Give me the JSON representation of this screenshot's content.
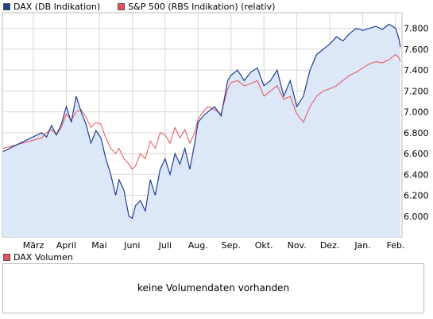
{
  "legend": {
    "series1_label": "DAX (DB Indikation)",
    "series2_label": "S&P 500 (RBS Indikation) (relativ)"
  },
  "volume": {
    "label": "DAX Volumen",
    "message": "keine Volumendaten vorhanden"
  },
  "colors": {
    "dax_line": "#1f3f8f",
    "dax_fill": "#dce8f8",
    "sp500_line": "#e8505a",
    "grid": "#d8d8d8"
  },
  "chart_data": {
    "type": "line",
    "x_tick_labels": [
      "März",
      "April",
      "Mai",
      "Juni",
      "Juli",
      "Aug.",
      "Sep.",
      "Okt.",
      "Nov.",
      "Dez.",
      "Jan.",
      "Feb."
    ],
    "y_tick_labels": [
      "6.000",
      "6.200",
      "6.400",
      "6.600",
      "6.800",
      "7.000",
      "7.200",
      "7.400",
      "7.600",
      "7.800"
    ],
    "ylim": [
      5800,
      7950
    ],
    "grid": true,
    "y_axis_position": "right",
    "series": [
      {
        "name": "DAX (DB Indikation)",
        "x": [
          0.0,
          0.25,
          0.4,
          0.55,
          0.7,
          0.85,
          1.0,
          1.15,
          1.3,
          1.45,
          1.6,
          1.75,
          1.9,
          2.05,
          2.2,
          2.35,
          2.5,
          2.6,
          2.75,
          2.9,
          3.0,
          3.1,
          3.25,
          3.4,
          3.55,
          3.7,
          3.85,
          4.0,
          4.15,
          4.3,
          4.45,
          4.6,
          4.75,
          4.9,
          5.0,
          5.15,
          5.3,
          5.5,
          5.7,
          5.9,
          6.0,
          6.2,
          6.4,
          6.6,
          6.8,
          7.0,
          7.2,
          7.4,
          7.6,
          7.8,
          8.0,
          8.2,
          8.4,
          8.6,
          8.8,
          9.0,
          9.2,
          9.4,
          9.6,
          9.8,
          10.0,
          10.2,
          10.4,
          10.6,
          10.8,
          11.0,
          11.1,
          11.2
        ],
        "y": [
          6620,
          6800,
          6760,
          6870,
          6780,
          6880,
          7050,
          6900,
          7150,
          7000,
          6880,
          6700,
          6820,
          6750,
          6550,
          6400,
          6200,
          6350,
          6250,
          6000,
          5980,
          6100,
          6150,
          6050,
          6350,
          6200,
          6450,
          6550,
          6400,
          6600,
          6500,
          6650,
          6450,
          6700,
          6900,
          6960,
          7000,
          7050,
          6960,
          7300,
          7350,
          7400,
          7300,
          7380,
          7420,
          7250,
          7300,
          7400,
          7150,
          7300,
          7050,
          7150,
          7400,
          7550,
          7600,
          7650,
          7720,
          7680,
          7750,
          7800,
          7780,
          7800,
          7820,
          7790,
          7840,
          7800,
          7700,
          7620
        ]
      },
      {
        "name": "S&P 500 (RBS Indikation) (relativ)",
        "x": [
          0.0,
          0.25,
          0.4,
          0.55,
          0.7,
          0.85,
          1.0,
          1.15,
          1.3,
          1.45,
          1.6,
          1.75,
          1.9,
          2.05,
          2.2,
          2.35,
          2.5,
          2.6,
          2.75,
          2.9,
          3.0,
          3.1,
          3.25,
          3.4,
          3.55,
          3.7,
          3.85,
          4.0,
          4.15,
          4.3,
          4.45,
          4.6,
          4.75,
          4.9,
          5.0,
          5.15,
          5.3,
          5.5,
          5.7,
          5.9,
          6.0,
          6.2,
          6.4,
          6.6,
          6.8,
          7.0,
          7.2,
          7.4,
          7.6,
          7.8,
          8.0,
          8.2,
          8.4,
          8.6,
          8.8,
          9.0,
          9.2,
          9.4,
          9.6,
          9.8,
          10.0,
          10.2,
          10.4,
          10.6,
          10.8,
          11.0,
          11.1,
          11.2
        ],
        "y": [
          6650,
          6750,
          6800,
          6830,
          6780,
          6850,
          6980,
          6920,
          7000,
          7020,
          6950,
          6850,
          6900,
          6880,
          6750,
          6650,
          6600,
          6650,
          6550,
          6500,
          6450,
          6480,
          6600,
          6550,
          6720,
          6650,
          6800,
          6780,
          6700,
          6850,
          6750,
          6830,
          6700,
          6800,
          6930,
          7000,
          7050,
          7020,
          6980,
          7220,
          7280,
          7300,
          7250,
          7270,
          7300,
          7150,
          7200,
          7250,
          7120,
          7150,
          6980,
          6900,
          7050,
          7150,
          7200,
          7220,
          7250,
          7300,
          7350,
          7380,
          7420,
          7460,
          7480,
          7470,
          7500,
          7550,
          7520,
          7480
        ]
      }
    ]
  }
}
